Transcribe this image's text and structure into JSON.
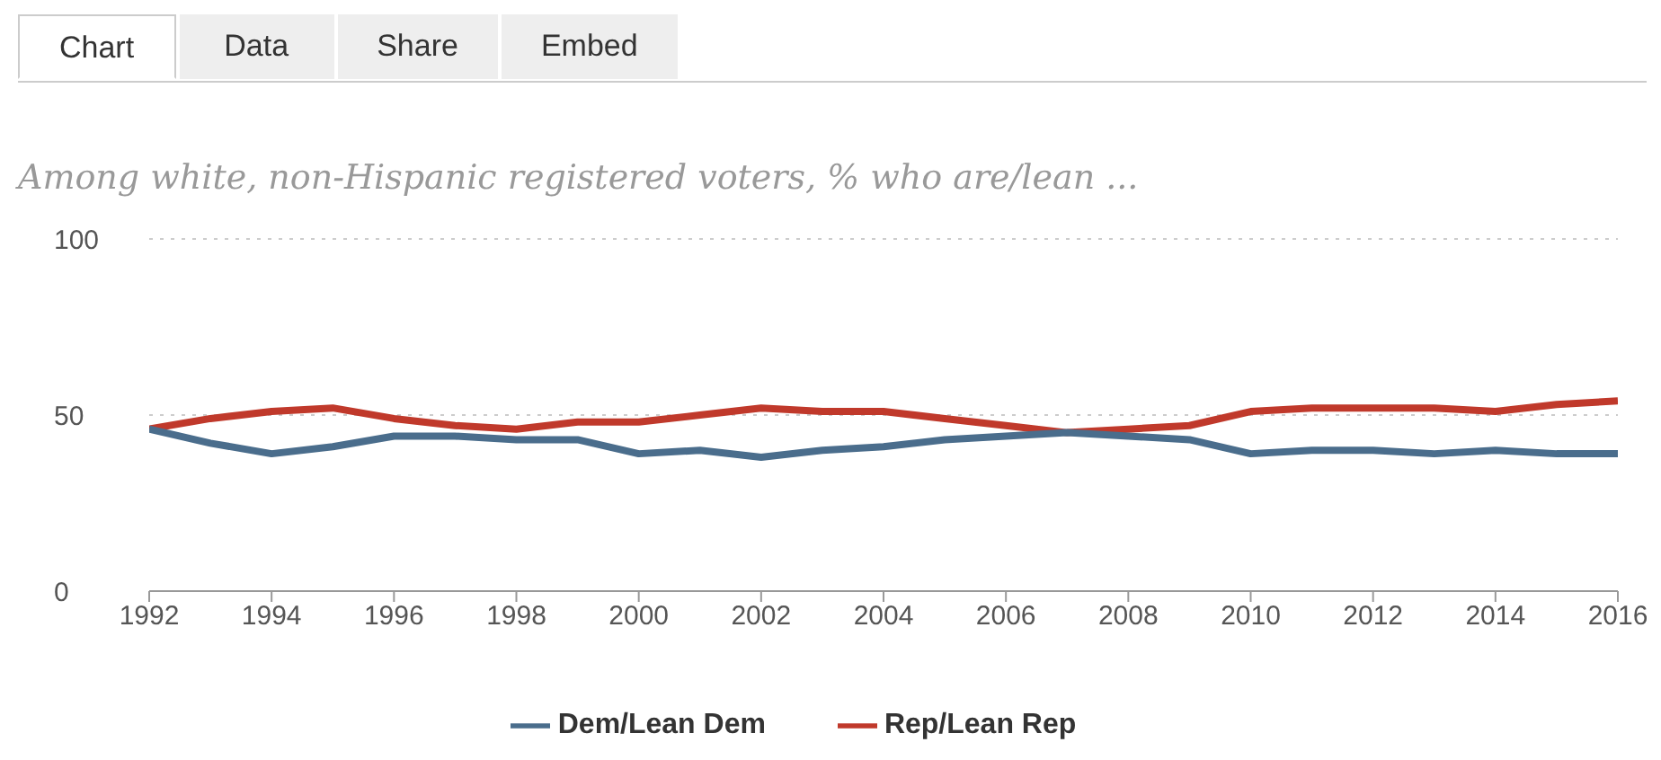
{
  "chart_data": {
    "type": "line",
    "title": "Among white, non-Hispanic registered voters, % who are/lean ...",
    "annotations": [
      "Chart",
      "Data",
      "Share",
      "Embed"
    ],
    "x": [
      1992,
      1993,
      1994,
      1995,
      1996,
      1997,
      1998,
      1999,
      2000,
      2001,
      2002,
      2003,
      2004,
      2005,
      2006,
      2007,
      2008,
      2009,
      2010,
      2011,
      2012,
      2013,
      2014,
      2015,
      2016
    ],
    "series": [
      {
        "name": "Rep/Lean Rep",
        "color": "#c0392b",
        "values": [
          46,
          49,
          51,
          52,
          49,
          47,
          46,
          48,
          48,
          50,
          52,
          51,
          51,
          49,
          47,
          45,
          46,
          47,
          51,
          52,
          52,
          52,
          51,
          53,
          54
        ]
      },
      {
        "name": "Dem/Lean Dem",
        "color": "#4a6d8c",
        "values": [
          46,
          42,
          39,
          41,
          44,
          44,
          43,
          43,
          39,
          40,
          38,
          40,
          41,
          43,
          44,
          45,
          44,
          43,
          39,
          40,
          40,
          39,
          40,
          39,
          39
        ]
      }
    ],
    "xlim": [
      1992,
      2016
    ],
    "xticks": [
      1992,
      1994,
      1996,
      1998,
      2000,
      2002,
      2004,
      2006,
      2008,
      2010,
      2012,
      2014,
      2016
    ],
    "ylim": [
      0,
      100
    ],
    "yticks": [
      0,
      50,
      100
    ],
    "grid": "y",
    "legend": "bottom",
    "marker": "none",
    "line_style": "solid"
  }
}
